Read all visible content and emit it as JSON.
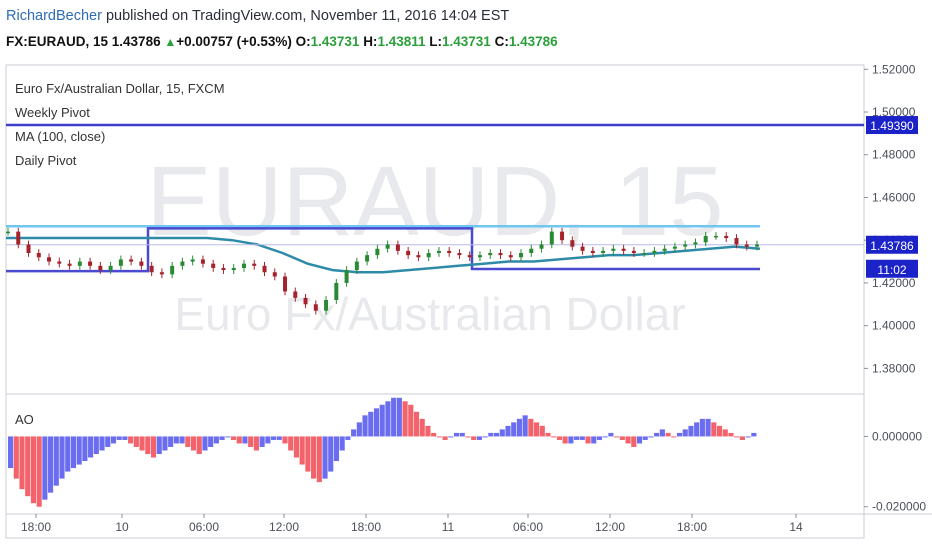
{
  "header": {
    "author": "RichardBecher",
    "published_text": "published on TradingView.com, November 11, 2016 14:04 EST",
    "symbol": "FX:EURAUD, 15",
    "last": "1.43786",
    "change": "+0.00757 (+0.53%)",
    "open_label": "O:",
    "open": "1.43731",
    "high_label": "H:",
    "high": "1.43811",
    "low_label": "L:",
    "low": "1.43731",
    "close_label": "C:",
    "close": "1.43786"
  },
  "main_pane": {
    "legend": [
      "Euro Fx/Australian Dollar, 15, FXCM",
      "Weekly Pivot",
      "MA (100, close)",
      "Daily Pivot"
    ],
    "watermark_symbol": "EURAUD, 15",
    "watermark_name": "Euro Fx/Australian Dollar",
    "price_badges": [
      "1.49390",
      "1.43786",
      "11:02"
    ]
  },
  "ao_pane": {
    "label": "AO"
  },
  "colors": {
    "weekly_pivot": "#3c3fc9",
    "daily_pivot": "#4a4ad0",
    "resistance": "#6fc6f0",
    "ma": "#2e8ba8",
    "ao_up": "#6b6df0",
    "ao_down": "#f2636b",
    "bull": "#2a8a34",
    "bear": "#a5232b"
  },
  "chart_data": [
    {
      "type": "candlestick",
      "title": "Euro Fx/Australian Dollar, 15, FXCM",
      "x_ticks": [
        "18:00",
        "10",
        "06:00",
        "12:00",
        "18:00",
        "11",
        "06:00",
        "12:00",
        "18:00",
        "14"
      ],
      "y_ticks": [
        "1.52000",
        "1.50000",
        "1.48000",
        "1.46000",
        "1.44000",
        "1.42000",
        "1.40000",
        "1.38000"
      ],
      "ylim": [
        1.368,
        1.522
      ],
      "series": [
        {
          "name": "EUR/AUD price",
          "points": [
            1.444,
            1.438,
            1.434,
            1.432,
            1.43,
            1.429,
            1.428,
            1.43,
            1.428,
            1.426,
            1.428,
            1.431,
            1.43,
            1.428,
            1.425,
            1.424,
            1.428,
            1.43,
            1.431,
            1.429,
            1.427,
            1.426,
            1.427,
            1.429,
            1.428,
            1.425,
            1.423,
            1.416,
            1.413,
            1.41,
            1.407,
            1.412,
            1.42,
            1.426,
            1.43,
            1.433,
            1.436,
            1.438,
            1.435,
            1.433,
            1.432,
            1.434,
            1.435,
            1.434,
            1.433,
            1.432,
            1.433,
            1.434,
            1.433,
            1.432,
            1.434,
            1.436,
            1.438,
            1.444,
            1.44,
            1.437,
            1.435,
            1.434,
            1.435,
            1.436,
            1.435,
            1.434,
            1.434,
            1.435,
            1.436,
            1.437,
            1.438,
            1.439,
            1.442,
            1.442,
            1.441,
            1.438,
            1.437,
            1.438
          ]
        },
        {
          "name": "MA (100, close)",
          "points": [
            1.441,
            1.441,
            1.441,
            1.441,
            1.441,
            1.441,
            1.441,
            1.441,
            1.441,
            1.44,
            1.438,
            1.434,
            1.429,
            1.426,
            1.425,
            1.425,
            1.426,
            1.427,
            1.428,
            1.429,
            1.43,
            1.43,
            1.431,
            1.432,
            1.433,
            1.433,
            1.434,
            1.435,
            1.436,
            1.437,
            1.436
          ]
        }
      ],
      "weekly_pivot": 1.4939,
      "daily_pivot": [
        {
          "from": "18:00",
          "to": "10",
          "value": 1.4255
        },
        {
          "from": "10",
          "to": "11",
          "value": 1.4455
        },
        {
          "from": "11",
          "to": "18:00",
          "value": 1.4265
        }
      ],
      "resistance": 1.4465,
      "last_price": 1.43786
    },
    {
      "type": "bar",
      "title": "AO",
      "y_ticks": [
        "0.000000",
        "-0.020000"
      ],
      "ylim": [
        -0.0215,
        0.0115
      ],
      "values": [
        -0.009,
        -0.012,
        -0.015,
        -0.017,
        -0.019,
        -0.02,
        -0.018,
        -0.016,
        -0.014,
        -0.012,
        -0.01,
        -0.009,
        -0.008,
        -0.007,
        -0.006,
        -0.005,
        -0.004,
        -0.003,
        -0.002,
        -0.001,
        -0.001,
        -0.002,
        -0.003,
        -0.004,
        -0.005,
        -0.006,
        -0.005,
        -0.004,
        -0.003,
        -0.002,
        -0.002,
        -0.003,
        -0.004,
        -0.005,
        -0.004,
        -0.003,
        -0.002,
        -0.001,
        0.0,
        -0.001,
        -0.002,
        -0.002,
        -0.003,
        -0.004,
        -0.003,
        -0.002,
        -0.001,
        -0.001,
        -0.002,
        -0.004,
        -0.006,
        -0.008,
        -0.01,
        -0.012,
        -0.013,
        -0.012,
        -0.01,
        -0.007,
        -0.004,
        -0.001,
        0.002,
        0.004,
        0.006,
        0.007,
        0.008,
        0.009,
        0.01,
        0.011,
        0.011,
        0.01,
        0.009,
        0.007,
        0.005,
        0.003,
        0.001,
        0.0,
        -0.001,
        0.0,
        0.001,
        0.001,
        0.0,
        -0.001,
        -0.001,
        0.0,
        0.001,
        0.001,
        0.002,
        0.003,
        0.004,
        0.005,
        0.006,
        0.005,
        0.004,
        0.003,
        0.001,
        0.0,
        -0.001,
        -0.002,
        -0.002,
        -0.001,
        -0.001,
        -0.002,
        -0.002,
        -0.001,
        0.0,
        0.001,
        0.0,
        -0.001,
        -0.002,
        -0.003,
        -0.002,
        -0.001,
        0.0,
        0.001,
        0.002,
        0.001,
        0.0,
        0.001,
        0.002,
        0.003,
        0.004,
        0.005,
        0.005,
        0.004,
        0.003,
        0.002,
        0.001,
        0.0,
        -0.001,
        0.0,
        0.001
      ]
    }
  ]
}
